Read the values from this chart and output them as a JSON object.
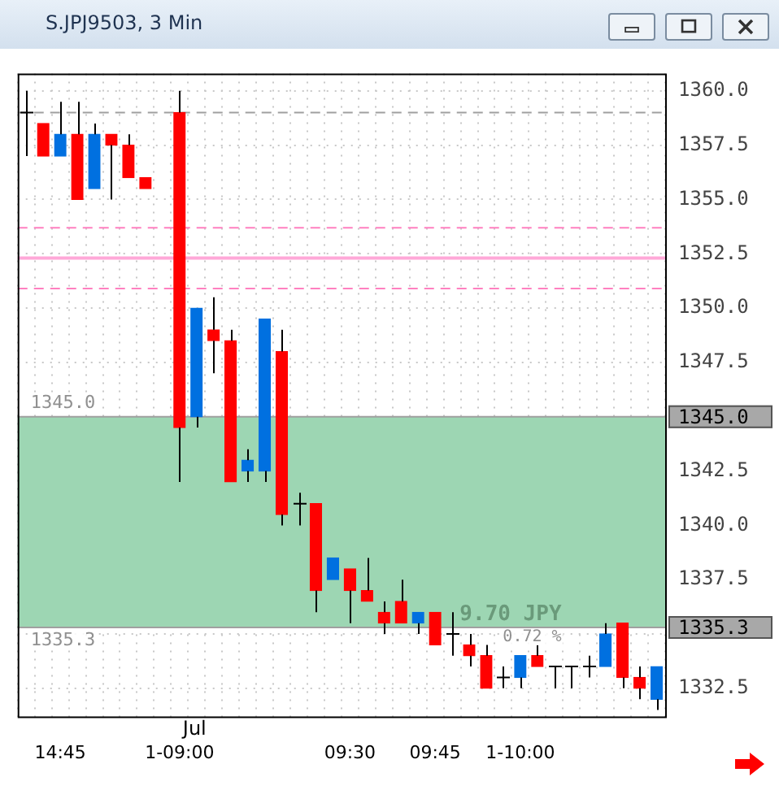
{
  "chart_data": {
    "type": "candlestick",
    "title": "S.JPJ9503, 3 Min",
    "categories": [
      null,
      null,
      "14:45",
      null,
      null,
      null,
      null,
      null,
      null,
      "1-09:00",
      null,
      null,
      null,
      null,
      null,
      null,
      null,
      null,
      null,
      "09:30",
      null,
      null,
      null,
      null,
      "09:45",
      null,
      null,
      null,
      null,
      "1-10:00",
      null,
      null,
      null,
      null,
      null,
      null,
      null,
      null
    ],
    "ohlc": [
      [
        1359.0,
        1360.0,
        1357.0,
        1359.0
      ],
      [
        1358.5,
        1358.5,
        1357.0,
        1357.0
      ],
      [
        1357.0,
        1359.5,
        1357.0,
        1358.0
      ],
      [
        1358.0,
        1359.5,
        1355.0,
        1355.0
      ],
      [
        1355.5,
        1358.5,
        1355.5,
        1358.0
      ],
      [
        1358.0,
        1358.0,
        1355.0,
        1357.5
      ],
      [
        1357.5,
        1358.0,
        1356.0,
        1356.0
      ],
      [
        1356.0,
        1356.0,
        1355.5,
        1355.5
      ],
      null,
      [
        1359.0,
        1360.0,
        1342.0,
        1344.5
      ],
      [
        1345.0,
        1350.0,
        1344.5,
        1350.0
      ],
      [
        1349.0,
        1350.5,
        1347.0,
        1348.5
      ],
      [
        1348.5,
        1349.0,
        1342.0,
        1342.0
      ],
      [
        1342.5,
        1343.5,
        1342.0,
        1343.0
      ],
      [
        1342.5,
        1349.5,
        1342.0,
        1349.5
      ],
      [
        1348.0,
        1349.0,
        1340.0,
        1340.5
      ],
      [
        1341.0,
        1341.5,
        1340.0,
        1341.0
      ],
      [
        1341.0,
        1341.0,
        1336.0,
        1337.0
      ],
      [
        1337.5,
        1338.5,
        1337.5,
        1338.5
      ],
      [
        1338.0,
        1338.0,
        1335.5,
        1337.0
      ],
      [
        1337.0,
        1338.5,
        1336.5,
        1336.5
      ],
      [
        1336.0,
        1336.5,
        1335.0,
        1335.5
      ],
      [
        1336.5,
        1337.5,
        1335.5,
        1335.5
      ],
      [
        1335.5,
        1336.0,
        1335.0,
        1336.0
      ],
      [
        1336.0,
        1336.0,
        1334.5,
        1334.5
      ],
      [
        1335.0,
        1336.0,
        1334.0,
        1335.0
      ],
      [
        1334.5,
        1335.0,
        1333.5,
        1334.0
      ],
      [
        1334.0,
        1334.5,
        1332.5,
        1332.5
      ],
      [
        1333.0,
        1333.5,
        1332.5,
        1333.0
      ],
      [
        1333.0,
        1334.0,
        1332.5,
        1334.0
      ],
      [
        1334.0,
        1334.5,
        1333.5,
        1333.5
      ],
      [
        1333.5,
        1333.5,
        1332.5,
        1333.5
      ],
      [
        1333.5,
        1333.5,
        1332.5,
        1333.5
      ],
      [
        1333.5,
        1334.0,
        1333.0,
        1333.5
      ],
      [
        1333.5,
        1335.5,
        1333.5,
        1335.0
      ],
      [
        1335.5,
        1335.5,
        1332.5,
        1333.0
      ],
      [
        1333.0,
        1333.5,
        1332.0,
        1332.5
      ],
      [
        1332.0,
        1333.5,
        1331.5,
        1333.5
      ]
    ],
    "colors": [
      "#000000",
      "#ff0000",
      "#0070e0",
      "#ff0000",
      "#0070e0",
      "#ff0000",
      "#ff0000",
      "#ff0000",
      null,
      "#ff0000",
      "#0070e0",
      "#ff0000",
      "#ff0000",
      "#0070e0",
      "#0070e0",
      "#ff0000",
      "#000000",
      "#ff0000",
      "#0070e0",
      "#ff0000",
      "#ff0000",
      "#ff0000",
      "#ff0000",
      "#0070e0",
      "#ff0000",
      "#000000",
      "#ff0000",
      "#ff0000",
      "#000000",
      "#0070e0",
      "#ff0000",
      "#000000",
      "#000000",
      "#000000",
      "#0070e0",
      "#ff0000",
      "#ff0000",
      "#0070e0"
    ],
    "ylim": [
      1331.2,
      1360.8
    ],
    "yticks": [
      {
        "value": 1332.5,
        "label": "1332.5"
      },
      {
        "value": 1335,
        "label": null
      },
      {
        "value": 1337.5,
        "label": "1337.5"
      },
      {
        "value": 1340,
        "label": "1340.0"
      },
      {
        "value": 1342.5,
        "label": "1342.5"
      },
      {
        "value": 1345,
        "label": null
      },
      {
        "value": 1347.5,
        "label": "1347.5"
      },
      {
        "value": 1350,
        "label": "1350.0"
      },
      {
        "value": 1352.5,
        "label": "1352.5"
      },
      {
        "value": 1355,
        "label": "1355.0"
      },
      {
        "value": 1357.5,
        "label": "1357.5"
      },
      {
        "value": 1360,
        "label": "1360.0"
      }
    ],
    "grid": true,
    "ref_lines": [
      {
        "axis": "y",
        "value": 1359.0,
        "color": "#a0a0a0",
        "line_style": "dashed"
      },
      {
        "axis": "y",
        "value": 1353.7,
        "color": "#ff80c0",
        "line_style": "dashed"
      },
      {
        "axis": "y",
        "value": 1352.3,
        "color": "#ffa8d8",
        "line_style": "solid"
      },
      {
        "axis": "y",
        "value": 1350.9,
        "color": "#ff80c0",
        "line_style": "dashed"
      },
      {
        "axis": "y",
        "value": 1345.0,
        "label": "1345.0",
        "color": "#a0a0a0",
        "line_style": "solid"
      },
      {
        "axis": "y",
        "value": 1335.3,
        "label": "1335.3",
        "color": "#a0a0a0",
        "line_style": "solid"
      }
    ],
    "bands": [
      {
        "axis": "y",
        "from": 1335.3,
        "to": 1345.0,
        "label": "9.70 JPY",
        "color": "#9dd6b3"
      }
    ],
    "annotations": [
      "Jul",
      {
        "text": "1345.0",
        "y": 1345.0
      },
      {
        "text": "1335.3",
        "y": 1335.3
      },
      {
        "text": "0.72 %",
        "y": 1335.3
      }
    ]
  }
}
